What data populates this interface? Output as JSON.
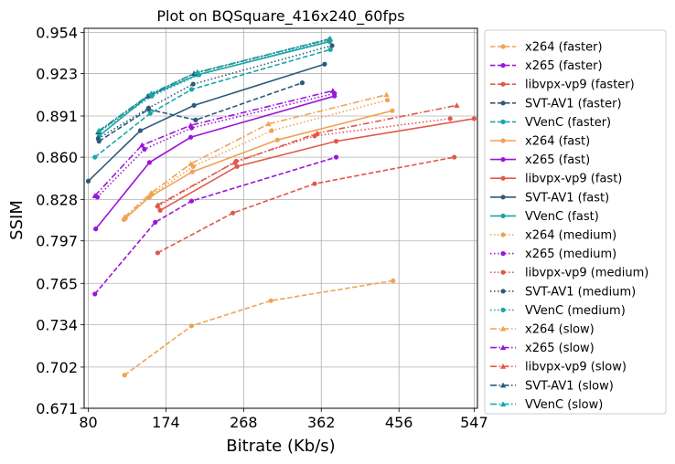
{
  "chart_data": {
    "type": "line",
    "title": "Plot on BQSquare_416x240_60fps",
    "xlabel": "Bitrate (Kb/s)",
    "ylabel": "SSIM",
    "xlim": [
      75,
      551
    ],
    "ylim": [
      0.671,
      0.957
    ],
    "xticks": [
      80,
      174,
      268,
      362,
      456,
      547
    ],
    "yticks": [
      0.671,
      0.702,
      0.734,
      0.765,
      0.797,
      0.828,
      0.86,
      0.891,
      0.923,
      0.954
    ],
    "ytick_labels": [
      "0.671",
      "0.702",
      "0.734",
      "0.765",
      "0.797",
      "0.828",
      "0.860",
      "0.891",
      "0.923",
      "0.954"
    ],
    "grid": true,
    "legend_position": "outside-right",
    "series": [
      {
        "name": "x264 (faster)",
        "color": "#f0a452",
        "dash": "dashed",
        "marker": "circle",
        "x": [
          124,
          205,
          301,
          449
        ],
        "y": [
          0.696,
          0.733,
          0.752,
          0.767
        ]
      },
      {
        "name": "x265 (faster)",
        "color": "#9b15d9",
        "dash": "dashed",
        "marker": "circle",
        "x": [
          88,
          161,
          205,
          380
        ],
        "y": [
          0.757,
          0.811,
          0.827,
          0.86
        ]
      },
      {
        "name": "libvpx-vp9 (faster)",
        "color": "#e0594a",
        "dash": "dashed",
        "marker": "circle",
        "x": [
          164,
          255,
          354,
          523
        ],
        "y": [
          0.788,
          0.818,
          0.84,
          0.86
        ]
      },
      {
        "name": "SVT-AV1 (faster)",
        "color": "#2d5a7b",
        "dash": "dashed",
        "marker": "circle",
        "x": [
          93,
          153,
          210,
          339
        ],
        "y": [
          0.872,
          0.896,
          0.888,
          0.916
        ]
      },
      {
        "name": "VVenC (faster)",
        "color": "#1aa7a7",
        "dash": "dashed",
        "marker": "circle",
        "x": [
          88,
          155,
          205,
          373
        ],
        "y": [
          0.86,
          0.893,
          0.911,
          0.941
        ]
      },
      {
        "name": "x264 (fast)",
        "color": "#f0a452",
        "dash": "solid",
        "marker": "circle",
        "x": [
          123,
          154,
          206,
          309,
          448
        ],
        "y": [
          0.813,
          0.83,
          0.849,
          0.873,
          0.895
        ]
      },
      {
        "name": "x265 (fast)",
        "color": "#9b15d9",
        "dash": "solid",
        "marker": "circle",
        "x": [
          89,
          154,
          204,
          378
        ],
        "y": [
          0.806,
          0.856,
          0.875,
          0.906
        ]
      },
      {
        "name": "libvpx-vp9 (fast)",
        "color": "#e0594a",
        "dash": "solid",
        "marker": "circle",
        "x": [
          167,
          260,
          380,
          547
        ],
        "y": [
          0.82,
          0.853,
          0.872,
          0.889
        ]
      },
      {
        "name": "SVT-AV1 (fast)",
        "color": "#2d5a7b",
        "dash": "solid",
        "marker": "circle",
        "x": [
          80,
          143,
          208,
          366
        ],
        "y": [
          0.842,
          0.88,
          0.899,
          0.93
        ]
      },
      {
        "name": "VVenC (fast)",
        "color": "#1aa7a7",
        "dash": "solid",
        "marker": "circle",
        "x": [
          93,
          153,
          212,
          372
        ],
        "y": [
          0.876,
          0.906,
          0.922,
          0.947
        ]
      },
      {
        "name": "x264 (medium)",
        "color": "#f0a452",
        "dash": "dotted",
        "marker": "circle",
        "x": [
          125,
          157,
          207,
          302,
          442
        ],
        "y": [
          0.814,
          0.832,
          0.853,
          0.88,
          0.903
        ]
      },
      {
        "name": "x265 (medium)",
        "color": "#9b15d9",
        "dash": "dotted",
        "marker": "circle",
        "x": [
          91,
          148,
          205,
          378
        ],
        "y": [
          0.83,
          0.866,
          0.882,
          0.908
        ]
      },
      {
        "name": "libvpx-vp9 (medium)",
        "color": "#e0594a",
        "dash": "dotted",
        "marker": "circle",
        "x": [
          164,
          259,
          354,
          518
        ],
        "y": [
          0.823,
          0.857,
          0.876,
          0.889
        ]
      },
      {
        "name": "SVT-AV1 (medium)",
        "color": "#2d5a7b",
        "dash": "dotted",
        "marker": "circle",
        "x": [
          92,
          153,
          207,
          375
        ],
        "y": [
          0.874,
          0.897,
          0.915,
          0.944
        ]
      },
      {
        "name": "VVenC (medium)",
        "color": "#1aa7a7",
        "dash": "dotted",
        "marker": "circle",
        "x": [
          93,
          157,
          214,
          372
        ],
        "y": [
          0.879,
          0.906,
          0.922,
          0.948
        ]
      },
      {
        "name": "x264 (slow)",
        "color": "#f0a452",
        "dash": "dashdot",
        "marker": "triangle",
        "x": [
          124,
          156,
          204,
          298,
          441
        ],
        "y": [
          0.815,
          0.833,
          0.855,
          0.885,
          0.907
        ]
      },
      {
        "name": "x265 (slow)",
        "color": "#9b15d9",
        "dash": "dashdot",
        "marker": "triangle",
        "x": [
          88,
          145,
          204,
          376
        ],
        "y": [
          0.831,
          0.869,
          0.884,
          0.91
        ]
      },
      {
        "name": "libvpx-vp9 (slow)",
        "color": "#e0594a",
        "dash": "dashdot",
        "marker": "triangle",
        "x": [
          164,
          257,
          357,
          526
        ],
        "y": [
          0.824,
          0.856,
          0.878,
          0.899
        ]
      },
      {
        "name": "SVT-AV1 (slow)",
        "color": "#2d5a7b",
        "dash": "dashdot",
        "marker": "triangle",
        "x": [
          92,
          152,
          208,
          372
        ],
        "y": [
          0.879,
          0.906,
          0.923,
          0.949
        ]
      },
      {
        "name": "VVenC (slow)",
        "color": "#1aa7a7",
        "dash": "dashdot",
        "marker": "triangle",
        "x": [
          93,
          156,
          212,
          373
        ],
        "y": [
          0.88,
          0.908,
          0.924,
          0.949
        ]
      }
    ]
  }
}
